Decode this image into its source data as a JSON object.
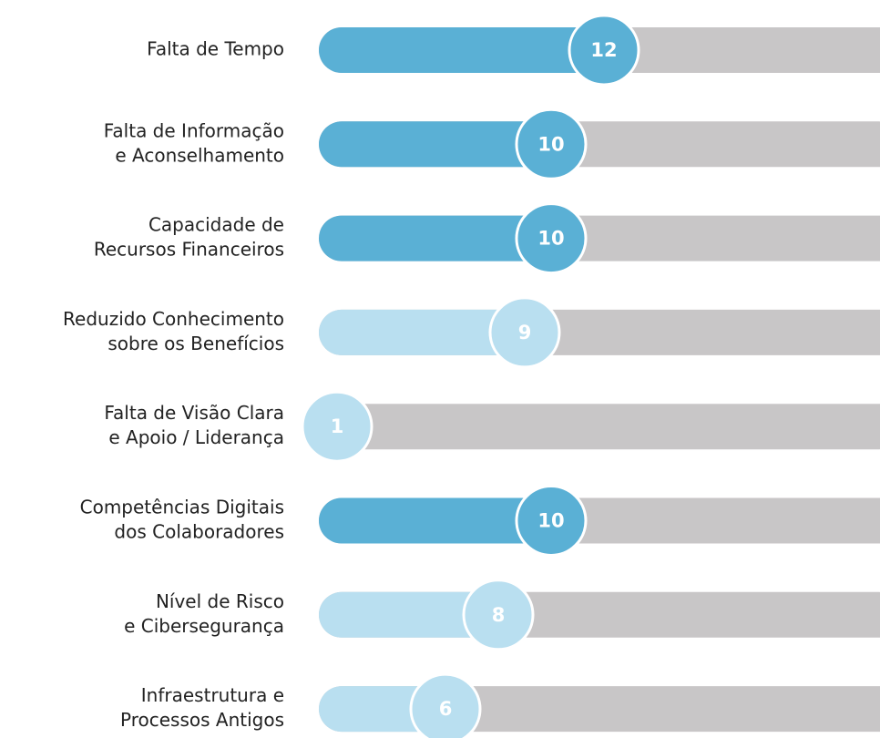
{
  "chart_data": {
    "type": "progress",
    "categories": [
      [
        "Falta de Tempo"
      ],
      [
        "Falta de Informação",
        "e Aconselhamento"
      ],
      [
        "Capacidade de",
        "Recursos Financeiros"
      ],
      [
        "Reduzido Conhecimento",
        "sobre os Benefícios"
      ],
      [
        "Falta de Visão Clara",
        "e Apoio / Liderança"
      ],
      [
        "Competências Digitais",
        "dos Colaboradores"
      ],
      [
        "Nível de Risco",
        "e Cibersegurança"
      ],
      [
        "Infraestrutura e",
        "Processos Antigos"
      ]
    ],
    "values": [
      12,
      10,
      10,
      9,
      1,
      10,
      8,
      6
    ],
    "colors": [
      "#5ab0d5",
      "#5ab0d5",
      "#5ab0d5",
      "#b9dff0",
      "#b9dff0",
      "#5ab0d5",
      "#b9dff0",
      "#b9dff0"
    ],
    "track_color": "#c8c6c7"
  }
}
